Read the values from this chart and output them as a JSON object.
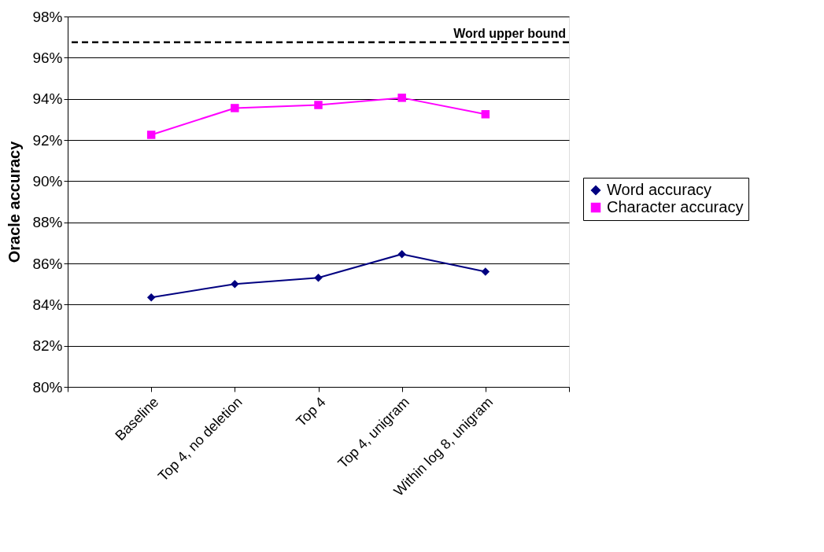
{
  "chart_data": {
    "type": "line",
    "ylabel": "Oracle accuracy",
    "categories": [
      null,
      "Baseline",
      "Top 4, no deletion",
      "Top 4",
      "Top 4, unigram",
      "Within log 8, unigram",
      null
    ],
    "series": [
      {
        "name": "Word accuracy",
        "color": "#000080",
        "marker": "diamond",
        "values": [
          null,
          84.35,
          85.0,
          85.3,
          86.45,
          85.6,
          null
        ]
      },
      {
        "name": "Character accuracy",
        "color": "#ff00ff",
        "marker": "square",
        "values": [
          null,
          92.25,
          93.55,
          93.7,
          94.05,
          93.25,
          null
        ]
      }
    ],
    "ylim": [
      80,
      98
    ],
    "yticks": [
      {
        "value": 80,
        "label": "80%"
      },
      {
        "value": 82,
        "label": "82%"
      },
      {
        "value": 84,
        "label": "84%"
      },
      {
        "value": 86,
        "label": "86%"
      },
      {
        "value": 88,
        "label": "88%"
      },
      {
        "value": 90,
        "label": "90%"
      },
      {
        "value": 92,
        "label": "92%"
      },
      {
        "value": 94,
        "label": "94%"
      },
      {
        "value": 96,
        "label": "96%"
      },
      {
        "value": 98,
        "label": "98%"
      }
    ],
    "ref_lines": [
      {
        "axis": "y",
        "value": 96.75,
        "label": "Word upper bound",
        "color": "#000000",
        "line_style": "dashed"
      }
    ],
    "grid": "y",
    "legend": "right",
    "line_style": "solid"
  }
}
